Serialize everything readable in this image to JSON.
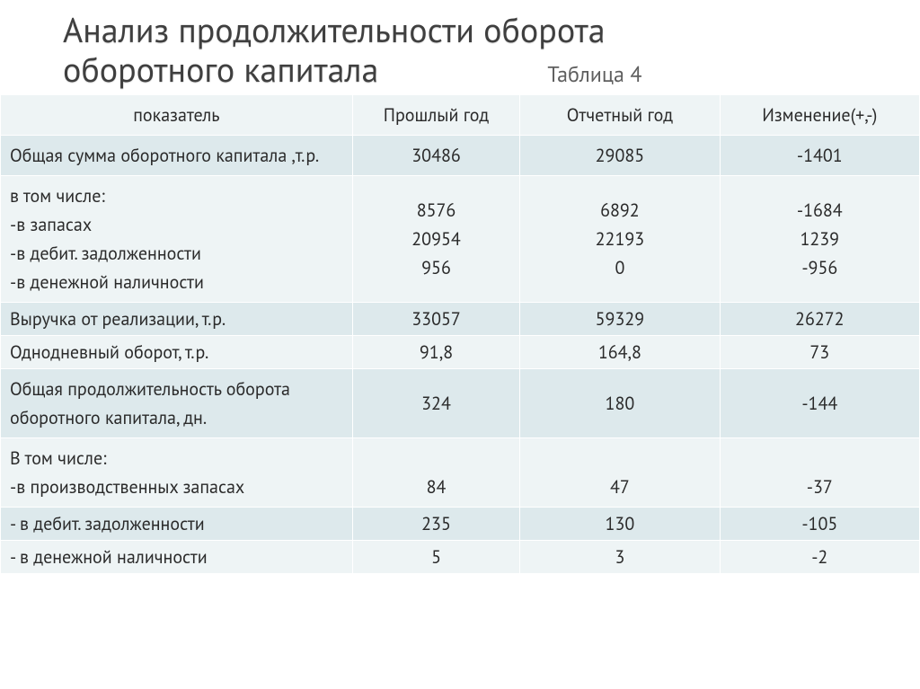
{
  "title": {
    "line1": "Анализ продолжительности оборота",
    "line2": "оборотного капитала",
    "caption": "Таблица 4"
  },
  "colors": {
    "band_a": "#eef4f5",
    "band_b": "#dde9ec",
    "border": "#ffffff",
    "title_color": "#3f3f3f",
    "caption_color": "#5f5f5f",
    "text_color": "#2a2a2a"
  },
  "columns": {
    "c0": "показатель",
    "c1": "Прошлый год",
    "c2": "Отчетный год",
    "c3": "Изменение(+,-)"
  },
  "rows": {
    "r0": {
      "label": "Общая сумма оборотного капитала ,т.р.",
      "prev": "30486",
      "curr": "29085",
      "delta": "-1401"
    },
    "r1": {
      "label": "в том числе:\n-в запасах\n-в дебит. задолженности\n-в денежной наличности",
      "prev": "8576\n20954\n956",
      "curr": "6892\n22193\n0",
      "delta": "-1684\n1239\n-956"
    },
    "r2": {
      "label": "Выручка от реализации, т.р.",
      "prev": "33057",
      "curr": "59329",
      "delta": "26272"
    },
    "r3": {
      "label": "Однодневный оборот, т.р.",
      "prev": "91,8",
      "curr": "164,8",
      "delta": "73"
    },
    "r4": {
      "label": "Общая продолжительность оборота оборотного капитала, дн.",
      "prev": "324",
      "curr": "180",
      "delta": "-144"
    },
    "r5": {
      "label": "В том числе:\n-в производственных запасах",
      "prev": "\n84",
      "curr": "\n47",
      "delta": "\n-37"
    },
    "r6": {
      "label": "- в дебит. задолженности",
      "prev": "235",
      "curr": "130",
      "delta": "-105"
    },
    "r7": {
      "label": "- в денежной наличности",
      "prev": "5",
      "curr": "3",
      "delta": "-2"
    }
  }
}
